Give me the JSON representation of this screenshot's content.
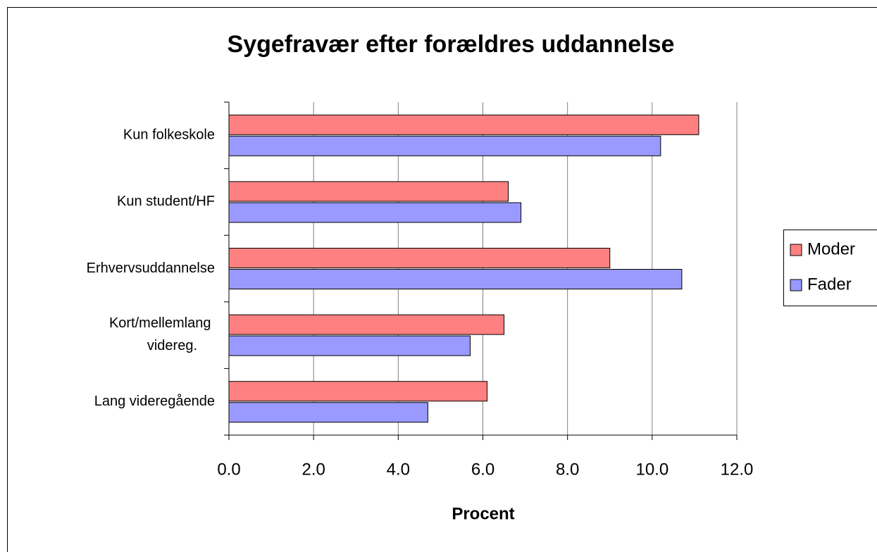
{
  "chart_data": {
    "type": "bar",
    "orientation": "horizontal",
    "title": "Sygefravær efter forældres uddannelse",
    "x_label": "Procent",
    "categories": [
      "Kun folkeskole",
      "Kun student/HF",
      "Erhvervsuddannelse",
      "Kort/mellemlang videreg.",
      "Lang videregående"
    ],
    "series": [
      {
        "name": "Moder",
        "color": "#ff8080",
        "values": [
          11.1,
          6.6,
          9.0,
          6.5,
          6.1
        ]
      },
      {
        "name": "Fader",
        "color": "#9999ff",
        "values": [
          10.2,
          6.9,
          10.7,
          5.7,
          4.7
        ]
      }
    ],
    "xlim": [
      0,
      12
    ],
    "xticks": [
      {
        "value": 0,
        "label": "0.0"
      },
      {
        "value": 2,
        "label": "2.0"
      },
      {
        "value": 4,
        "label": "4.0"
      },
      {
        "value": 6,
        "label": "6.0"
      },
      {
        "value": 8,
        "label": "8.0"
      },
      {
        "value": 10,
        "label": "10.0"
      },
      {
        "value": 12,
        "label": "12.0"
      }
    ],
    "grid": true,
    "legend": "right"
  }
}
